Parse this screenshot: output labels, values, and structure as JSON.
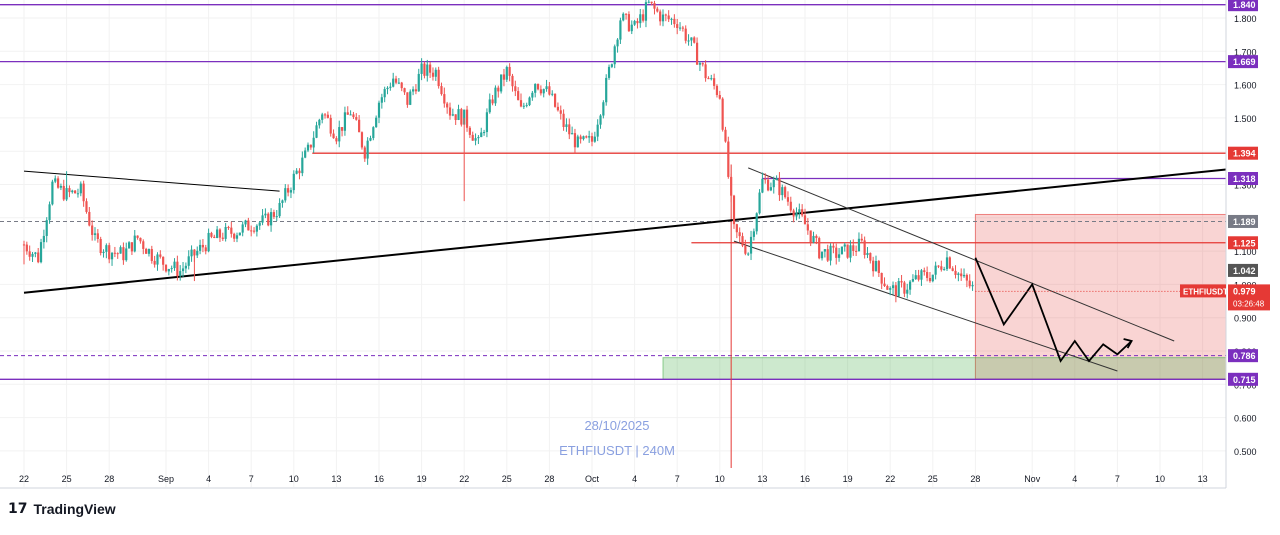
{
  "chart_data": {
    "type": "candlestick",
    "symbol": "ETHFIUSDT",
    "interval_label": "ETHFIUSDT | 240M",
    "date_label": "28/10/2025",
    "ylim": [
      0.48,
      1.86
    ],
    "y_ticks": [
      0.5,
      0.6,
      0.7,
      0.8,
      0.9,
      1.0,
      1.1,
      1.2,
      1.3,
      1.4,
      1.5,
      1.6,
      1.7,
      1.8
    ],
    "y_tick_labels": [
      "0.500",
      "0.600",
      "0.700",
      "0.800",
      "0.900",
      "1.000",
      "1.100",
      "1.200",
      "1.300",
      "1.400",
      "1.500",
      "1.600",
      "1.700",
      "1.800"
    ],
    "x_ticks": [
      {
        "d": 0,
        "label": "22"
      },
      {
        "d": 3,
        "label": "25"
      },
      {
        "d": 6,
        "label": "28"
      },
      {
        "d": 10,
        "label": "Sep"
      },
      {
        "d": 13,
        "label": "4"
      },
      {
        "d": 16,
        "label": "7"
      },
      {
        "d": 19,
        "label": "10"
      },
      {
        "d": 22,
        "label": "13"
      },
      {
        "d": 25,
        "label": "16"
      },
      {
        "d": 28,
        "label": "19"
      },
      {
        "d": 31,
        "label": "22"
      },
      {
        "d": 34,
        "label": "25"
      },
      {
        "d": 37,
        "label": "28"
      },
      {
        "d": 40,
        "label": "Oct"
      },
      {
        "d": 43,
        "label": "4"
      },
      {
        "d": 46,
        "label": "7"
      },
      {
        "d": 49,
        "label": "10"
      },
      {
        "d": 52,
        "label": "13"
      },
      {
        "d": 55,
        "label": "16"
      },
      {
        "d": 58,
        "label": "19"
      },
      {
        "d": 61,
        "label": "22"
      },
      {
        "d": 64,
        "label": "25"
      },
      {
        "d": 67,
        "label": "28"
      },
      {
        "d": 71,
        "label": "Nov"
      },
      {
        "d": 74,
        "label": "4"
      },
      {
        "d": 77,
        "label": "7"
      },
      {
        "d": 80,
        "label": "10"
      },
      {
        "d": 83,
        "label": "13"
      }
    ],
    "price_path": [
      [
        0,
        1.12
      ],
      [
        1,
        1.08
      ],
      [
        2,
        1.3
      ],
      [
        3,
        1.27
      ],
      [
        4,
        1.28
      ],
      [
        5,
        1.13
      ],
      [
        6,
        1.1
      ],
      [
        7,
        1.09
      ],
      [
        8,
        1.14
      ],
      [
        9,
        1.09
      ],
      [
        10,
        1.06
      ],
      [
        11,
        1.04
      ],
      [
        12,
        1.09
      ],
      [
        13,
        1.13
      ],
      [
        14,
        1.15
      ],
      [
        15,
        1.16
      ],
      [
        16,
        1.18
      ],
      [
        17,
        1.19
      ],
      [
        18,
        1.23
      ],
      [
        19,
        1.32
      ],
      [
        20,
        1.4
      ],
      [
        21,
        1.52
      ],
      [
        22,
        1.45
      ],
      [
        23,
        1.52
      ],
      [
        24,
        1.4
      ],
      [
        25,
        1.55
      ],
      [
        26,
        1.62
      ],
      [
        27,
        1.55
      ],
      [
        28,
        1.64
      ],
      [
        29,
        1.64
      ],
      [
        30,
        1.52
      ],
      [
        31,
        1.5
      ],
      [
        32,
        1.42
      ],
      [
        33,
        1.56
      ],
      [
        34,
        1.64
      ],
      [
        35,
        1.52
      ],
      [
        36,
        1.61
      ],
      [
        37,
        1.57
      ],
      [
        38,
        1.48
      ],
      [
        39,
        1.42
      ],
      [
        40,
        1.43
      ],
      [
        41,
        1.6
      ],
      [
        42,
        1.8
      ],
      [
        43,
        1.77
      ],
      [
        44,
        1.84
      ],
      [
        45,
        1.8
      ],
      [
        46,
        1.79
      ],
      [
        47,
        1.72
      ],
      [
        48,
        1.63
      ],
      [
        49,
        1.57
      ],
      [
        50,
        1.16
      ],
      [
        51,
        1.1
      ],
      [
        52,
        1.31
      ],
      [
        53,
        1.3
      ],
      [
        54,
        1.24
      ],
      [
        55,
        1.18
      ],
      [
        56,
        1.1
      ],
      [
        57,
        1.09
      ],
      [
        58,
        1.1
      ],
      [
        59,
        1.12
      ],
      [
        60,
        1.05
      ],
      [
        61,
        0.98
      ],
      [
        62,
        0.99
      ],
      [
        63,
        1.02
      ],
      [
        64,
        1.03
      ],
      [
        65,
        1.08
      ],
      [
        66,
        1.02
      ],
      [
        67,
        0.98
      ]
    ],
    "price_wicks": [
      {
        "d": 31,
        "low": 1.25
      },
      {
        "d": 12,
        "low": 1.01
      },
      {
        "d": 0,
        "low": 1.06
      },
      {
        "d": 3,
        "high": 1.34
      }
    ],
    "horizontal_levels": [
      {
        "value": 1.84,
        "label": "1.840",
        "color": "#7B2FBE"
      },
      {
        "value": 1.669,
        "label": "1.669",
        "color": "#7B2FBE"
      },
      {
        "value": 1.394,
        "label": "1.394",
        "color": "#E53935"
      },
      {
        "value": 1.318,
        "label": "1.318",
        "color": "#7B2FBE"
      },
      {
        "value": 1.189,
        "label": "1.189",
        "color": "#787B86"
      },
      {
        "value": 1.125,
        "label": "1.125",
        "color": "#E53935"
      },
      {
        "value": 0.786,
        "label": "0.786",
        "color": "#7B2FBE"
      },
      {
        "value": 0.715,
        "label": "0.715",
        "color": "#7B2FBE"
      }
    ],
    "last_price": {
      "value": 1.042,
      "label": "1.042",
      "color": "#555555"
    },
    "current_price": {
      "symbol": "ETHFIUSDT",
      "value": 0.979,
      "label": "0.979",
      "countdown": "03:26:48",
      "color": "#E53935"
    },
    "trendlines": [
      {
        "name": "black-support-trendline",
        "from": [
          0,
          0.975
        ],
        "to": [
          85,
          1.345
        ],
        "color": "#000000"
      },
      {
        "name": "early-resistance-trendline",
        "from": [
          0,
          1.34
        ],
        "to": [
          18,
          1.28
        ],
        "color": "#000000"
      },
      {
        "name": "channel-upper-line",
        "from": [
          51,
          1.35
        ],
        "to": [
          81,
          0.83
        ],
        "color": "#333333"
      },
      {
        "name": "channel-lower-line",
        "from": [
          50,
          1.13
        ],
        "to": [
          77,
          0.74
        ],
        "color": "#333333"
      }
    ],
    "forecast_path": [
      [
        67,
        1.08
      ],
      [
        69,
        0.88
      ],
      [
        71,
        1.0
      ],
      [
        73,
        0.77
      ],
      [
        74,
        0.83
      ],
      [
        75,
        0.77
      ],
      [
        76,
        0.82
      ],
      [
        77,
        0.79
      ],
      [
        78,
        0.83
      ]
    ],
    "zones": [
      {
        "name": "red-target-zone",
        "from_d": 67,
        "to_d": 85,
        "low": 0.716,
        "high": 1.21,
        "color": "#E53935"
      },
      {
        "name": "green-demand-zone",
        "from_d": 45,
        "to_d": 85,
        "low": 0.715,
        "high": 0.78,
        "color": "#4CAF50"
      }
    ],
    "vertical_marker": {
      "d": 49.8,
      "color": "#E53935"
    }
  },
  "footer": {
    "logo_glyph": "17",
    "brand": "TradingView"
  }
}
